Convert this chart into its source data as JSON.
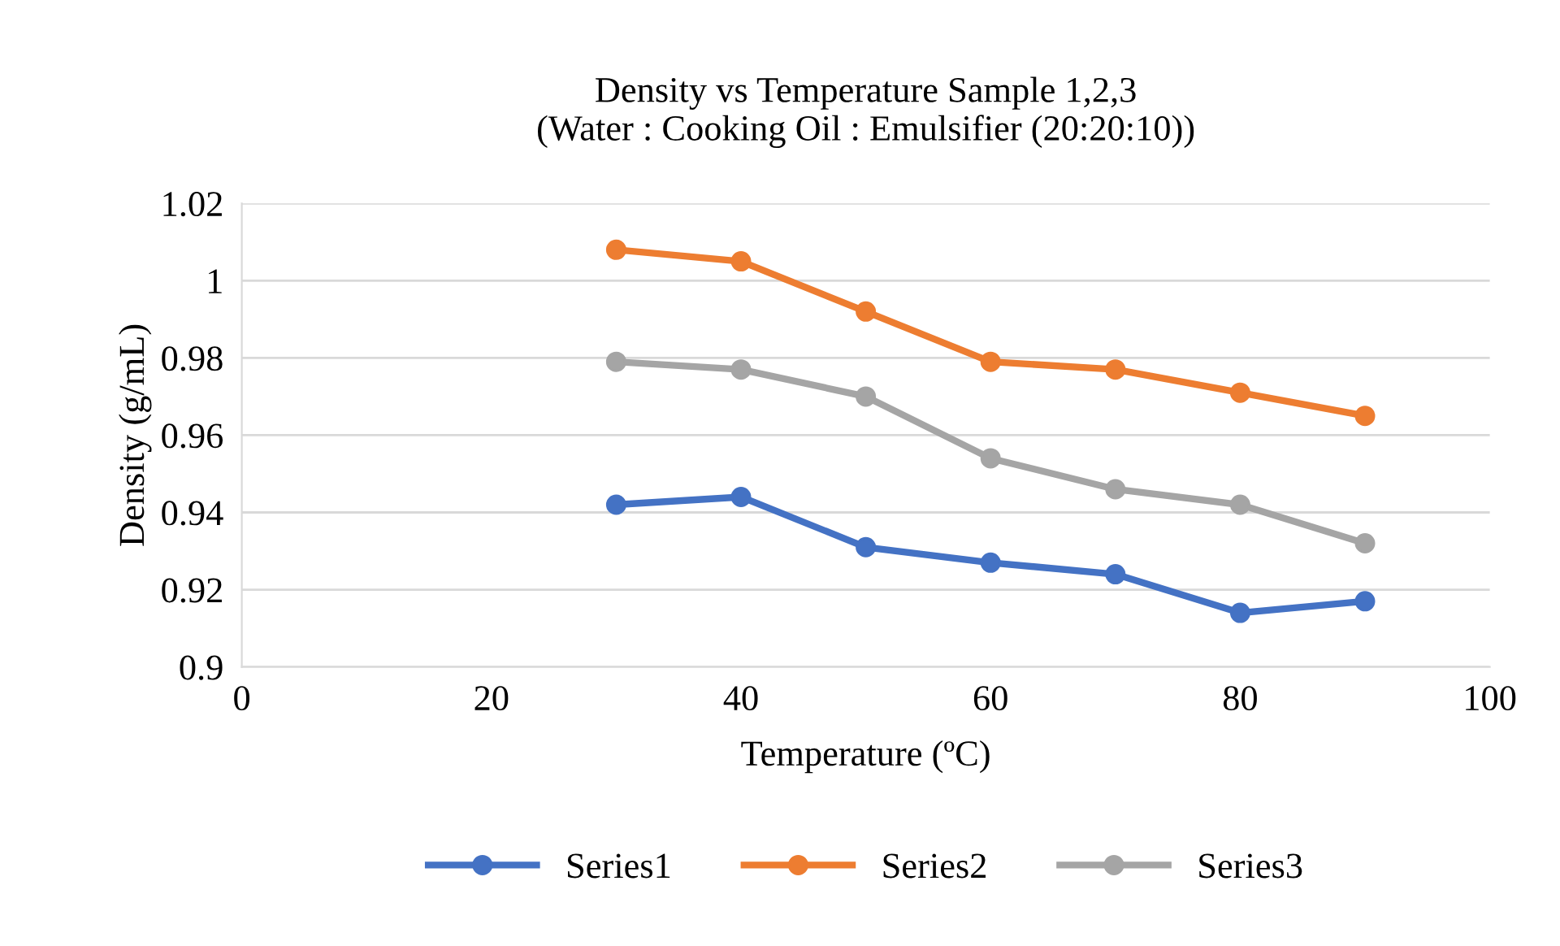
{
  "chart_data": {
    "type": "line",
    "title": "Density vs Temperature Sample 1,2,3\n(Water : Cooking Oil : Emulsifier (20:20:10))",
    "xlabel": "Temperature (ºC)",
    "ylabel": "Density (g/mL)",
    "x": [
      30,
      40,
      50,
      60,
      70,
      80,
      90
    ],
    "series": [
      {
        "name": "Series1",
        "color": "#4472c4",
        "values": [
          0.942,
          0.944,
          0.931,
          0.927,
          0.924,
          0.914,
          0.917
        ]
      },
      {
        "name": "Series2",
        "color": "#ed7d31",
        "values": [
          1.008,
          1.005,
          0.992,
          0.979,
          0.977,
          0.971,
          0.965
        ]
      },
      {
        "name": "Series3",
        "color": "#a5a5a5",
        "values": [
          0.979,
          0.977,
          0.97,
          0.954,
          0.946,
          0.942,
          0.932
        ]
      }
    ],
    "xlim": [
      0,
      100
    ],
    "xticks": [
      0,
      20,
      40,
      60,
      80,
      100
    ],
    "ylim": [
      0.9,
      1.02
    ],
    "yticks": [
      0.9,
      0.92,
      0.94,
      0.96,
      0.98,
      1,
      1.02
    ],
    "grid": "y",
    "legend": "bottom",
    "marker": "circle",
    "line_style": "solid"
  }
}
